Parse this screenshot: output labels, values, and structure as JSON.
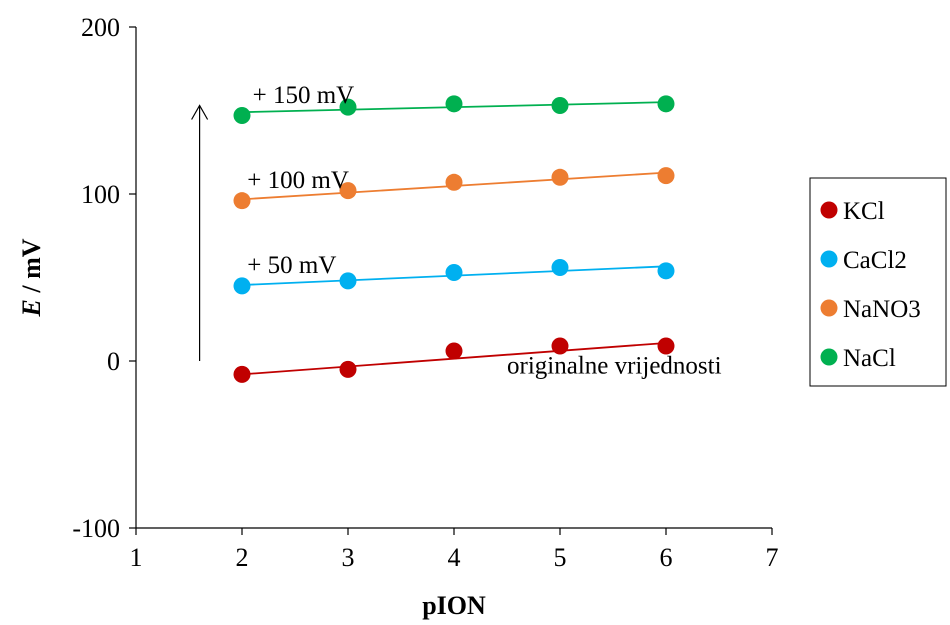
{
  "chart_data": {
    "type": "scatter",
    "title": "",
    "xlabel": "pION",
    "ylabel_italic": "E",
    "ylabel_rest": " / mV",
    "xlim": [
      1,
      7
    ],
    "ylim": [
      -100,
      200
    ],
    "x_ticks": [
      1,
      2,
      3,
      4,
      5,
      6,
      7
    ],
    "y_ticks": [
      -100,
      0,
      100,
      200
    ],
    "grid": false,
    "legend_position": "right",
    "x": [
      2,
      3,
      4,
      5,
      6
    ],
    "series": [
      {
        "name": "KCl",
        "color": "#c00000",
        "values": [
          -8,
          -5,
          6,
          9,
          9
        ],
        "trend": [
          -8,
          -3.3,
          1.4,
          6.1,
          10.8
        ]
      },
      {
        "name": "CaCl2",
        "color": "#00b0f0",
        "values": [
          45,
          48,
          53,
          56,
          54
        ],
        "trend": [
          45.5,
          48.3,
          51.1,
          53.9,
          56.7
        ]
      },
      {
        "name": "NaNO3",
        "color": "#ed7d31",
        "values": [
          96,
          102,
          107,
          110,
          111
        ],
        "trend": [
          96.8,
          100.8,
          104.8,
          108.8,
          112.8
        ]
      },
      {
        "name": "NaCl",
        "color": "#00b050",
        "values": [
          147,
          152,
          154,
          153,
          154
        ],
        "trend": [
          149,
          150.5,
          152,
          153.5,
          155
        ]
      }
    ],
    "annotations": [
      {
        "text": "+ 150 mV",
        "x": 2.1,
        "y": 160
      },
      {
        "text": "+ 100 mV",
        "x": 2.05,
        "y": 109
      },
      {
        "text": "+ 50 mV",
        "x": 2.05,
        "y": 58
      },
      {
        "text": "originalne vrijednosti",
        "x": 4.5,
        "y": -2
      }
    ],
    "arrow": {
      "x": 1.6,
      "y_from": 0,
      "y_to": 153
    }
  }
}
